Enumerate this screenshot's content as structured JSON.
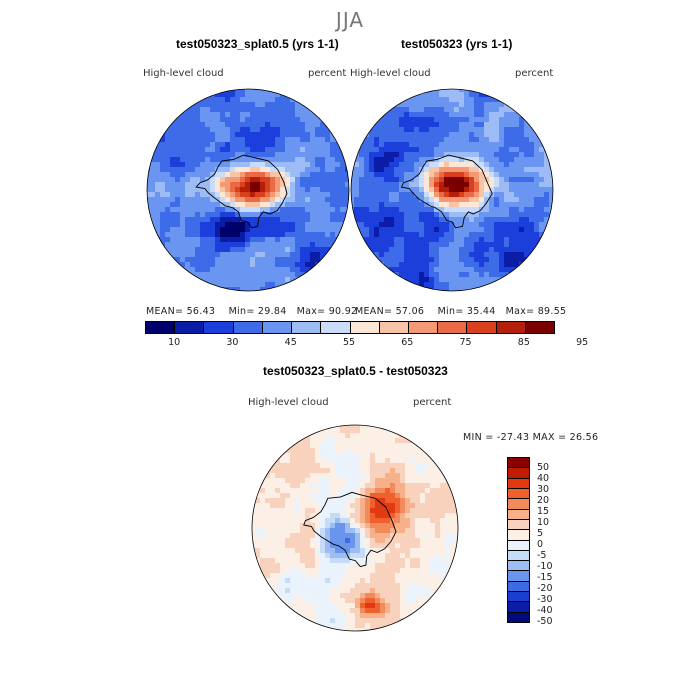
{
  "season": "JJA",
  "variable": "High-level cloud",
  "units": "percent",
  "panels": {
    "left": {
      "title": "test050323_splat0.5 (yrs 1-1)",
      "mean": "MEAN=  56.43",
      "min": "Min=  29.84",
      "max": "Max=  90.92"
    },
    "right": {
      "title": "test050323 (yrs 1-1)",
      "mean": "MEAN=  57.06",
      "min": "Min=  35.44",
      "max": "Max=  89.55"
    },
    "diff": {
      "title": "test050323_splat0.5 - test050323",
      "minmax": "MIN = -27.43  MAX =   26.56"
    }
  },
  "abs_colorbar": {
    "labels": [
      "10",
      "30",
      "45",
      "55",
      "65",
      "75",
      "85",
      "95"
    ],
    "colors": [
      "#00006b",
      "#0b1ca6",
      "#1c3edb",
      "#3e6be8",
      "#6a95f0",
      "#9dbcf5",
      "#c9dcf9",
      "#fce6d6",
      "#f9c4a5",
      "#f39a74",
      "#ea6a45",
      "#d9401e",
      "#b51e08",
      "#7a0000"
    ]
  },
  "diff_colorbar": {
    "labels": [
      "50",
      "40",
      "30",
      "20",
      "15",
      "10",
      "5",
      "0",
      "-5",
      "-10",
      "-15",
      "-20",
      "-30",
      "-40",
      "-50"
    ],
    "colors": [
      "#8a0000",
      "#c21c00",
      "#e23a10",
      "#f0602c",
      "#f38a5c",
      "#f6b08a",
      "#f9d2bd",
      "#fcefe6",
      "#eaf2fc",
      "#c5dbf7",
      "#9dbdf2",
      "#6a95ec",
      "#3e6be3",
      "#1c3ed0",
      "#0b1ca6",
      "#000a7a"
    ]
  }
}
